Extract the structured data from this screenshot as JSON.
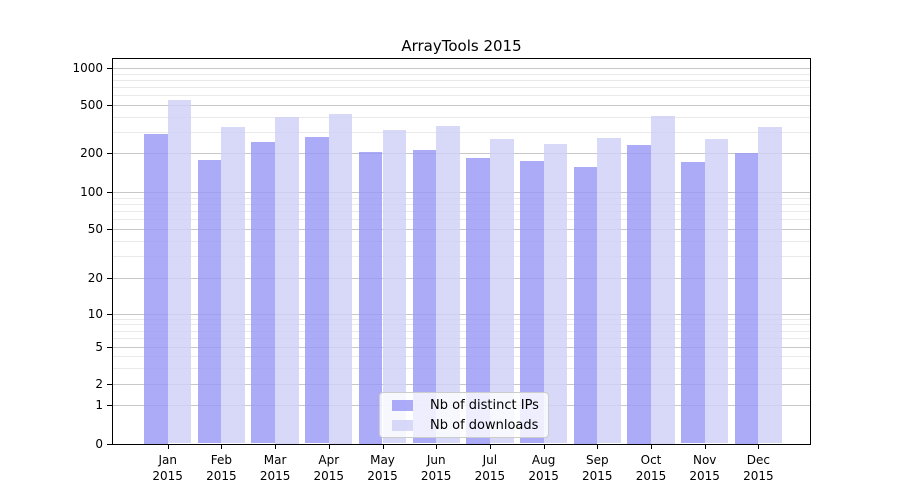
{
  "chart_data": {
    "type": "bar",
    "title": "ArrayTools 2015",
    "categories": [
      "Jan",
      "Feb",
      "Mar",
      "Apr",
      "May",
      "Jun",
      "Jul",
      "Aug",
      "Sep",
      "Oct",
      "Nov",
      "Dec"
    ],
    "category_year": "2015",
    "series": [
      {
        "name": "Nb of distinct IPs",
        "color": "#9898f7",
        "values": [
          290,
          177,
          247,
          271,
          206,
          211,
          183,
          174,
          156,
          233,
          170,
          200
        ]
      },
      {
        "name": "Nb of downloads",
        "color": "#d0d0f6",
        "values": [
          550,
          330,
          398,
          421,
          308,
          337,
          261,
          237,
          266,
          405,
          261,
          330
        ]
      }
    ],
    "y_scale": "log-like with 0 baseline",
    "y_ticks": [
      0,
      1,
      2,
      5,
      10,
      20,
      50,
      100,
      200,
      500,
      1000
    ],
    "y_minor_gridlines": [
      3,
      4,
      6,
      7,
      8,
      9,
      30,
      40,
      60,
      70,
      80,
      90,
      300,
      400,
      600,
      700,
      800,
      900
    ],
    "ylim": [
      0,
      1200
    ],
    "grid": true,
    "legend_position": "lower center"
  },
  "colors": {
    "background": "#ffffff",
    "ips_bar": "#9898f7",
    "downloads_bar": "#d0d0f6",
    "bar_alpha": 0.82,
    "major_grid": "#c8c8c8",
    "minor_grid": "#e9e9e9",
    "spine": "#000000",
    "legend_border": "#cccccc",
    "legend_background": "#ffffff",
    "text": "#000000"
  }
}
